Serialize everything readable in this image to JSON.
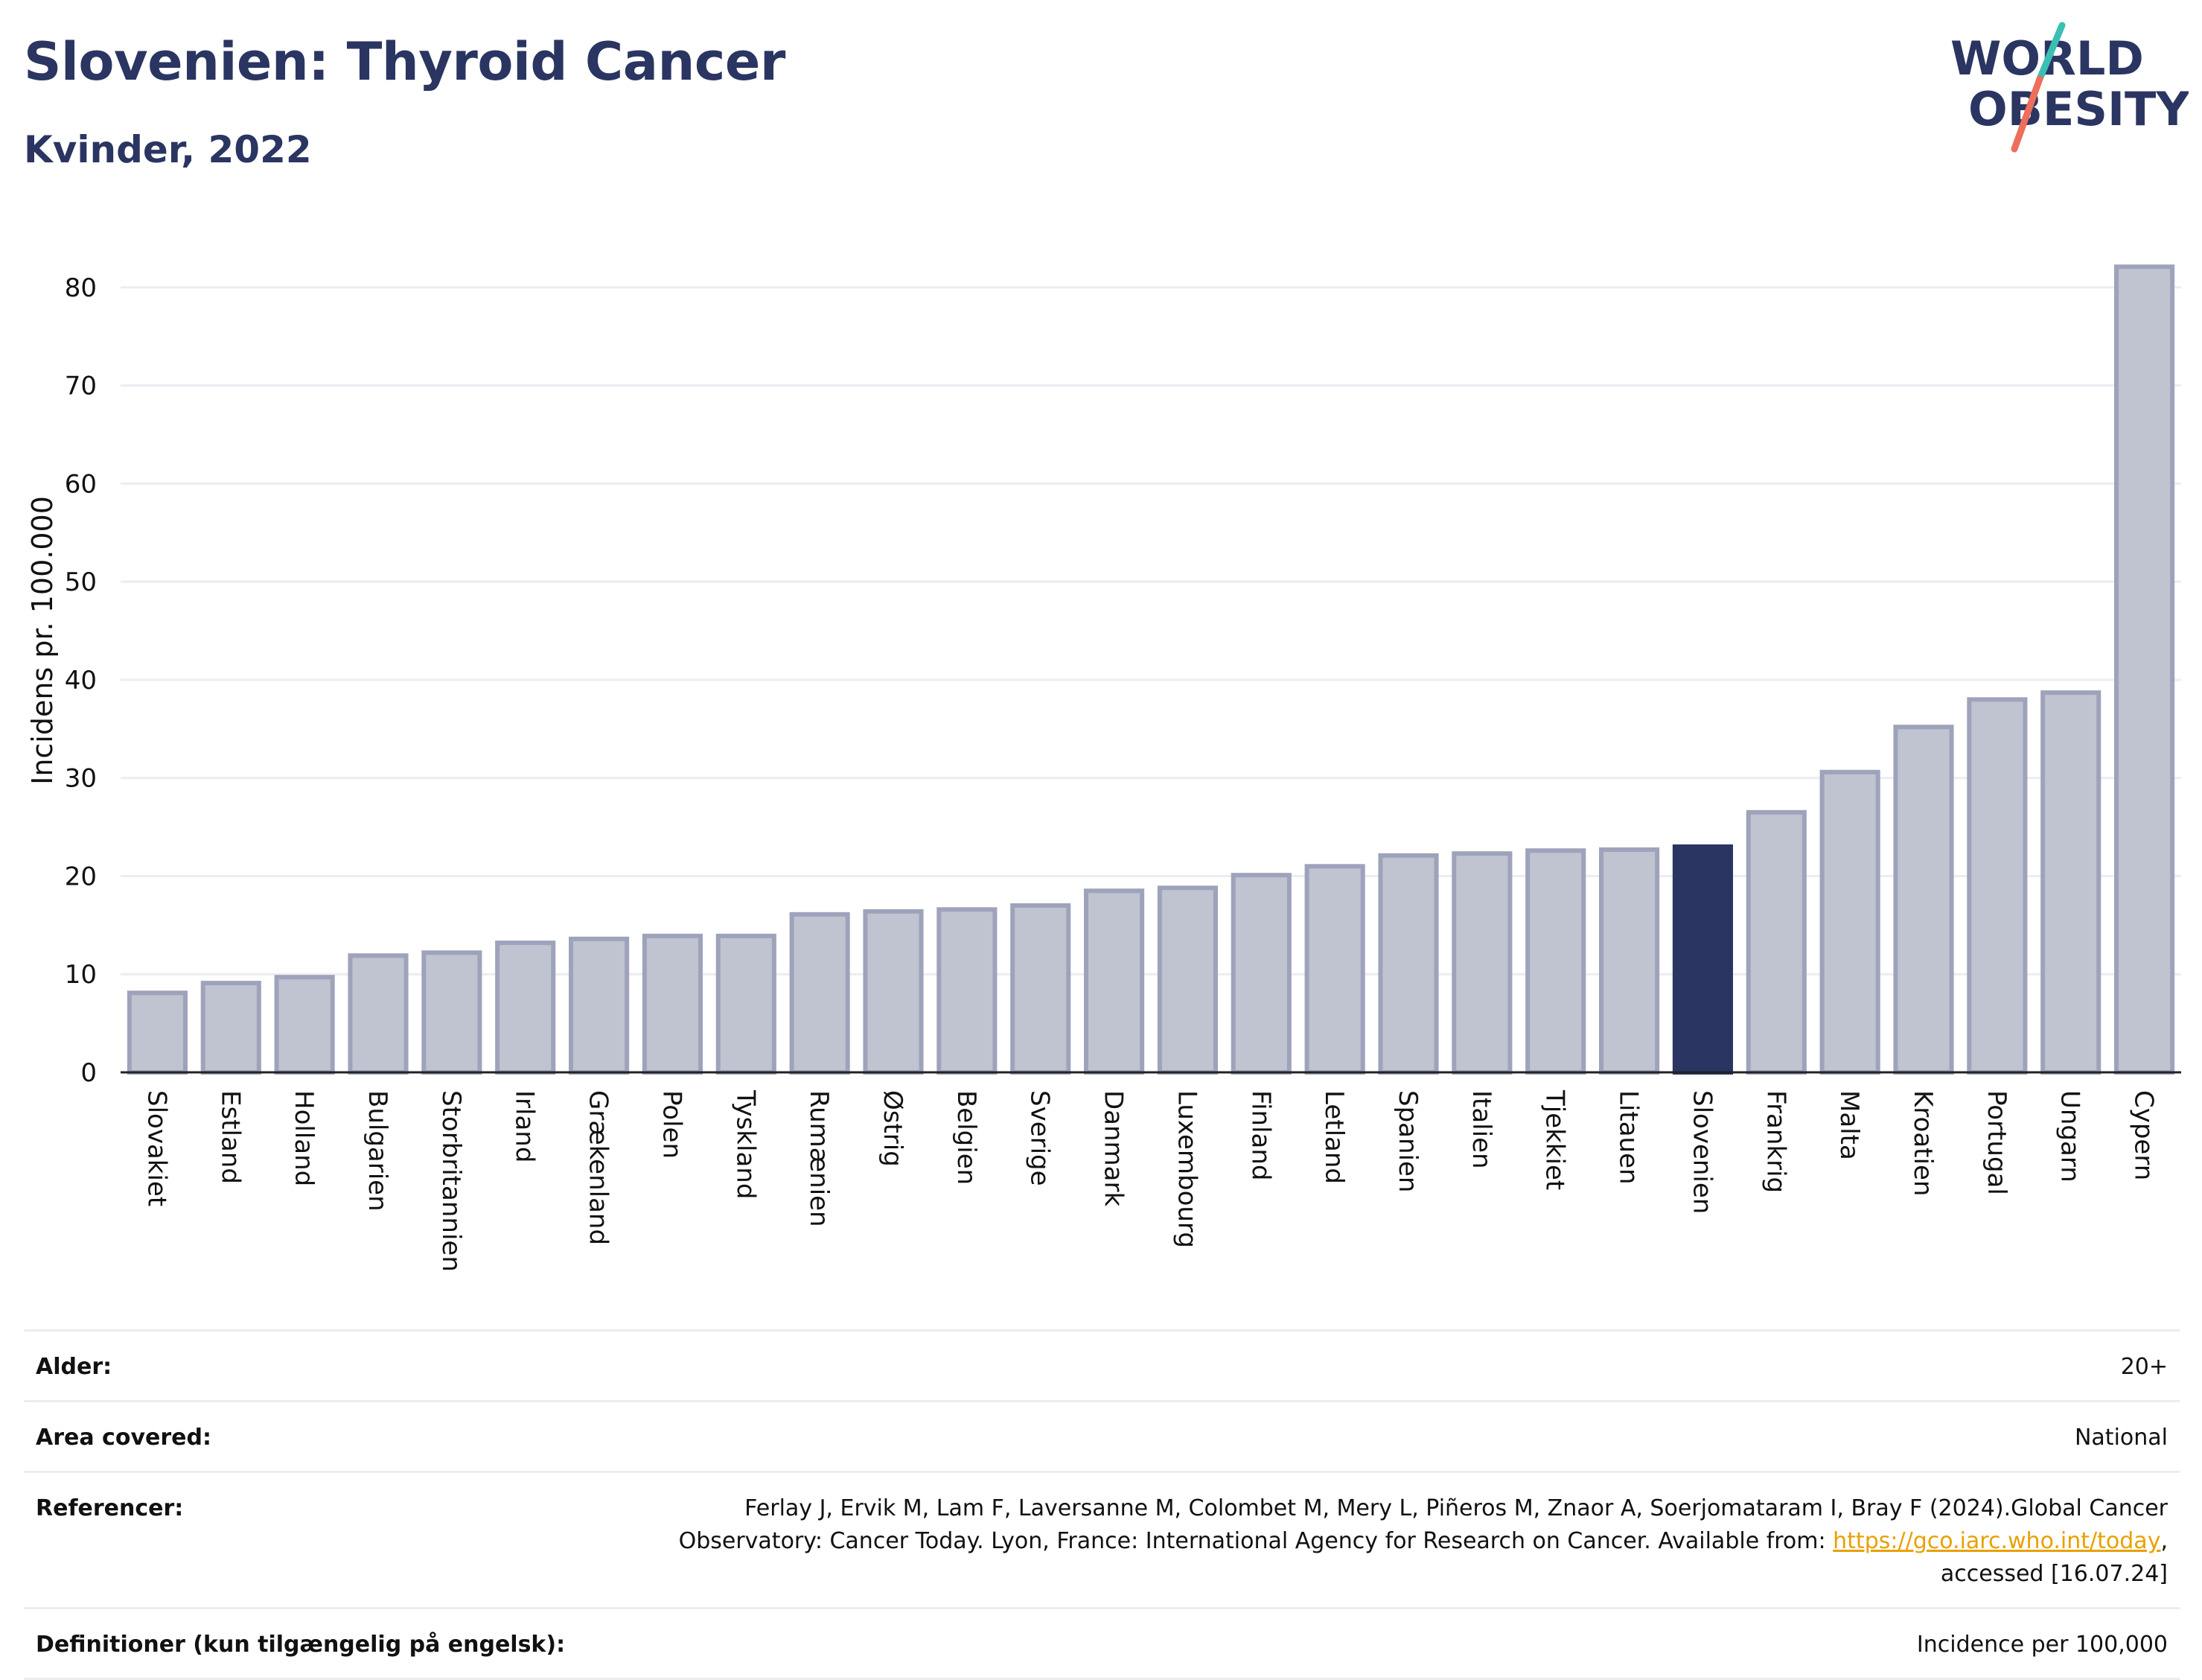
{
  "title": "Slovenien: Thyroid Cancer",
  "subtitle": "Kvinder, 2022",
  "logo": {
    "line1": "WORLD",
    "line2": "OBESITY"
  },
  "colors": {
    "title": "#2b3562",
    "bar_default": "#c0c3d0",
    "bar_border": "#9ea3bb",
    "bar_highlight": "#2b3562",
    "grid": "#ececf2",
    "logo_teal": "#3bbfb3",
    "logo_coral": "#ec6e5b"
  },
  "chart_data": {
    "type": "bar",
    "ylabel": "Incidens pr. 100.000",
    "xlabel": "",
    "ylim": [
      0,
      85
    ],
    "yticks": [
      0,
      10,
      20,
      30,
      40,
      50,
      60,
      70,
      80
    ],
    "grid": true,
    "highlight": "Slovenien",
    "categories": [
      "Slovakiet",
      "Estland",
      "Holland",
      "Bulgarien",
      "Storbritannien",
      "Irland",
      "Grækenland",
      "Polen",
      "Tyskland",
      "Rumænien",
      "Østrig",
      "Belgien",
      "Sverige",
      "Danmark",
      "Luxembourg",
      "Finland",
      "Letland",
      "Spanien",
      "Italien",
      "Tjekkiet",
      "Litauen",
      "Slovenien",
      "Frankrig",
      "Malta",
      "Kroatien",
      "Portugal",
      "Ungarn",
      "Cypern"
    ],
    "values": [
      8.1,
      9.1,
      9.7,
      11.9,
      12.2,
      13.2,
      13.6,
      13.9,
      13.9,
      16.1,
      16.4,
      16.6,
      17.0,
      18.5,
      18.8,
      20.1,
      21.0,
      22.1,
      22.3,
      22.6,
      22.7,
      23.0,
      26.5,
      30.6,
      35.2,
      38.0,
      38.7,
      82.1
    ]
  },
  "info": [
    {
      "key": "Alder:",
      "value": "20+"
    },
    {
      "key": "Area covered:",
      "value": "National"
    },
    {
      "key": "Referencer:",
      "value_before": "Ferlay J, Ervik M, Lam F, Laversanne M, Colombet M, Mery L, Piñeros M, Znaor A, Soerjomataram I, Bray F (2024).Global Cancer Observatory: Cancer Today. Lyon, France: International Agency for Research on Cancer. Available from: ",
      "link": "https://gco.iarc.who.int/today",
      "value_after": ", accessed [16.07.24]"
    },
    {
      "key": "Definitioner (kun tilgængelig på engelsk):",
      "value": "Incidence per 100,000"
    }
  ]
}
